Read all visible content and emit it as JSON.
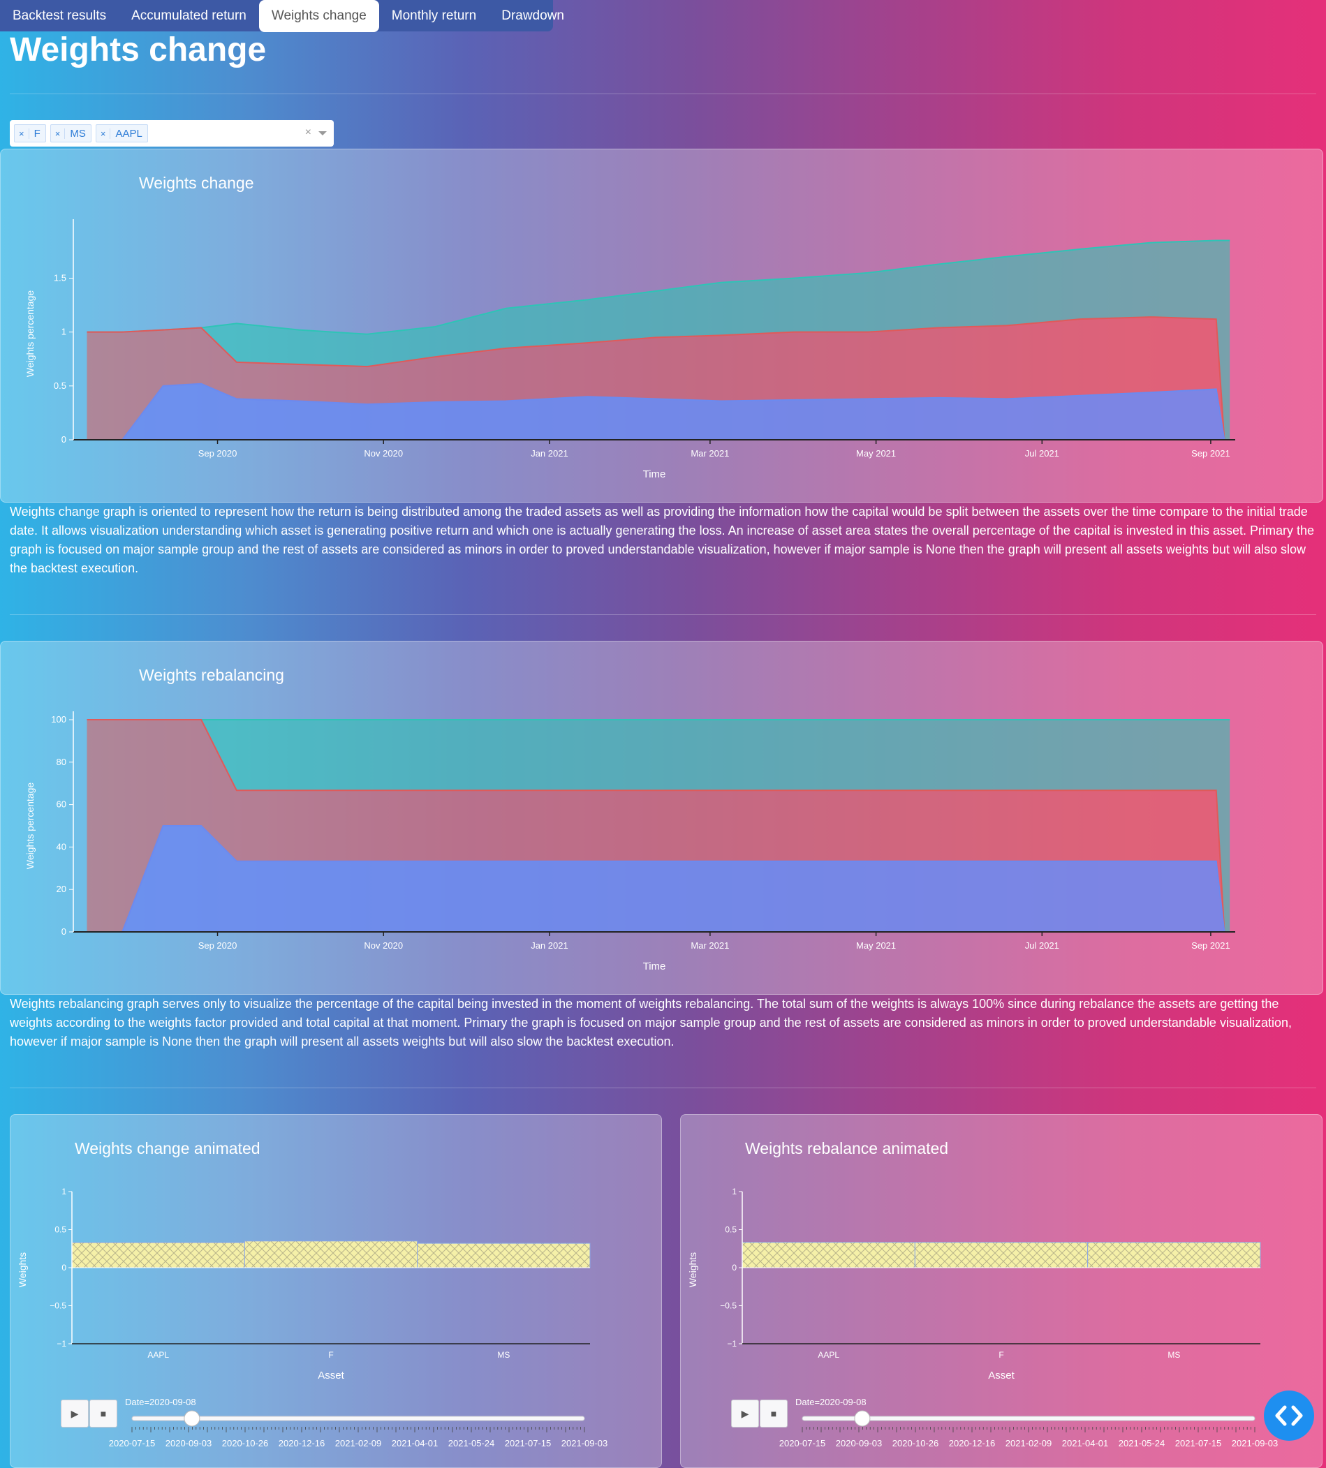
{
  "tabs": [
    {
      "label": "Backtest results"
    },
    {
      "label": "Accumulated return"
    },
    {
      "label": "Weights change",
      "active": true
    },
    {
      "label": "Monthly return"
    },
    {
      "label": "Drawdown"
    }
  ],
  "page_title": "Weights change",
  "asset_select": {
    "selected": [
      "F",
      "MS",
      "AAPL"
    ],
    "clear": "×"
  },
  "colors": {
    "aapl": "#6b8af0",
    "f": "#e05a5a",
    "ms": "#2ec4b6",
    "bar_fill": "#f5f0a8",
    "fab": "#1e8ff0"
  },
  "descriptions": {
    "weights_change": "Weights change graph is oriented to represent how the return is being distributed among the traded assets as well as providing the information how the capital would be split between the assets over the time compare to the initial trade date. It allows visualization understanding which asset is generating positive return and which one is actually generating the loss. An increase of asset area states the overall percentage of the capital is invested in this asset. Primary the graph is focused on major sample group and the rest of assets are considered as minors in order to proved understandable visualization, however if major sample is None then the graph will present all assets weights but will also slow the backtest execution.",
    "weights_rebalancing": "Weights rebalancing graph serves only to visualize the percentage of the capital being invested in the moment of weights rebalancing. The total sum of the weights is always 100% since during rebalance the assets are getting the weights according to the weights factor provided and total capital at that moment. Primary the graph is focused on major sample group and the rest of assets are considered as minors in order to proved understandable visualization, however if major sample is None then the graph will present all assets weights but will also slow the backtest execution."
  },
  "chart_data": [
    {
      "id": "weights_change",
      "type": "area",
      "title": "Weights change",
      "xlabel": "Time",
      "ylabel": "Weights percentage",
      "x_ticks": [
        "Sep 2020",
        "Nov 2020",
        "Jan 2021",
        "Mar 2021",
        "May 2021",
        "Jul 2021",
        "Sep 2021"
      ],
      "y_ticks": [
        "0",
        "0.5",
        "1",
        "1.5"
      ],
      "ylim": [
        0,
        1.97
      ],
      "x": [
        "2020-07-15",
        "2020-07-28",
        "2020-08-12",
        "2020-08-26",
        "2020-09-08",
        "2020-10-01",
        "2020-10-26",
        "2020-11-20",
        "2020-12-16",
        "2021-01-15",
        "2021-02-09",
        "2021-03-05",
        "2021-04-01",
        "2021-04-28",
        "2021-05-24",
        "2021-06-18",
        "2021-07-15",
        "2021-08-10",
        "2021-09-03",
        "2021-09-06",
        "2021-09-08"
      ],
      "series": [
        {
          "name": "AAPL",
          "cumulative": [
            0,
            0,
            0.5,
            0.52,
            0.38,
            0.36,
            0.33,
            0.35,
            0.36,
            0.4,
            0.38,
            0.36,
            0.37,
            0.38,
            0.39,
            0.38,
            0.41,
            0.44,
            0.47,
            0,
            0
          ]
        },
        {
          "name": "F",
          "cumulative": [
            1.0,
            1.0,
            1.02,
            1.04,
            0.72,
            0.7,
            0.68,
            0.77,
            0.85,
            0.9,
            0.95,
            0.97,
            1.0,
            1.0,
            1.04,
            1.06,
            1.12,
            1.14,
            1.12,
            0,
            0
          ]
        },
        {
          "name": "MS",
          "cumulative": [
            1.0,
            1.0,
            1.02,
            1.04,
            1.08,
            1.02,
            0.98,
            1.05,
            1.22,
            1.3,
            1.38,
            1.46,
            1.5,
            1.55,
            1.63,
            1.7,
            1.77,
            1.83,
            1.85,
            1.85,
            1.85
          ]
        }
      ]
    },
    {
      "id": "weights_rebalancing",
      "type": "area",
      "title": "Weights rebalancing",
      "xlabel": "Time",
      "ylabel": "Weights percentage",
      "x_ticks": [
        "Sep 2020",
        "Nov 2020",
        "Jan 2021",
        "Mar 2021",
        "May 2021",
        "Jul 2021",
        "Sep 2021"
      ],
      "y_ticks": [
        "0",
        "20",
        "40",
        "60",
        "80",
        "100"
      ],
      "ylim": [
        0,
        100
      ],
      "x": [
        "2020-07-15",
        "2020-07-28",
        "2020-08-12",
        "2020-08-26",
        "2020-09-08",
        "2021-09-03",
        "2021-09-06",
        "2021-09-08"
      ],
      "series": [
        {
          "name": "AAPL",
          "cumulative": [
            0,
            0,
            50,
            50,
            33.3,
            33.3,
            0,
            0
          ]
        },
        {
          "name": "F",
          "cumulative": [
            100,
            100,
            100,
            100,
            66.7,
            66.7,
            0,
            0
          ]
        },
        {
          "name": "MS",
          "cumulative": [
            100,
            100,
            100,
            100,
            100,
            100,
            100,
            100
          ]
        }
      ]
    },
    {
      "id": "weights_change_animated",
      "type": "bar",
      "title": "Weights change animated",
      "xlabel": "Asset",
      "ylabel": "Weights",
      "categories": [
        "AAPL",
        "F",
        "MS"
      ],
      "values": [
        0.33,
        0.35,
        0.32
      ],
      "y_ticks": [
        "1",
        "0.5",
        "0",
        "−0.5",
        "−1"
      ],
      "ylim": [
        -1,
        1
      ],
      "frame": "Date=2020-09-08",
      "slider_ticks": [
        "2020-07-15",
        "2020-09-03",
        "2020-10-26",
        "2020-12-16",
        "2021-02-09",
        "2021-04-01",
        "2021-05-24",
        "2021-07-15",
        "2021-09-03"
      ],
      "slider_value": "2020-09-08"
    },
    {
      "id": "weights_rebalance_animated",
      "type": "bar",
      "title": "Weights rebalance animated",
      "xlabel": "Asset",
      "ylabel": "Weights",
      "categories": [
        "AAPL",
        "F",
        "MS"
      ],
      "values": [
        0.333,
        0.333,
        0.333
      ],
      "y_ticks": [
        "1",
        "0.5",
        "0",
        "−0.5",
        "−1"
      ],
      "ylim": [
        -1,
        1
      ],
      "frame": "Date=2020-09-08",
      "slider_ticks": [
        "2020-07-15",
        "2020-09-03",
        "2020-10-26",
        "2020-12-16",
        "2021-02-09",
        "2021-04-01",
        "2021-05-24",
        "2021-07-15",
        "2021-09-03"
      ],
      "slider_value": "2020-09-08"
    }
  ],
  "controls": {
    "play": "▶",
    "stop": "■",
    "fab": "‹›"
  }
}
